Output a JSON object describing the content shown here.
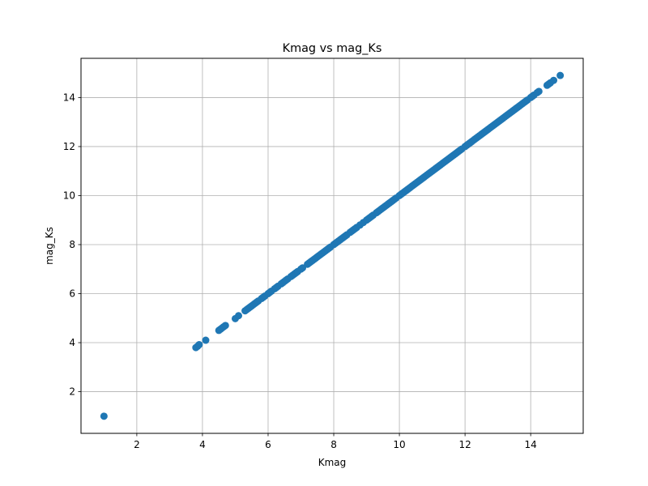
{
  "chart_data": {
    "type": "scatter",
    "title": "Kmag vs mag_Ks",
    "xlabel": "Kmag",
    "ylabel": "mag_Ks",
    "xlim": [
      0.3,
      15.6
    ],
    "ylim": [
      0.3,
      15.6
    ],
    "x_ticks": [
      2,
      4,
      6,
      8,
      10,
      12,
      14
    ],
    "y_ticks": [
      2,
      4,
      6,
      8,
      10,
      12,
      14
    ],
    "x_tick_labels": [
      "2",
      "4",
      "6",
      "8",
      "10",
      "12",
      "14"
    ],
    "y_tick_labels": [
      "2",
      "4",
      "6",
      "8",
      "10",
      "12",
      "14"
    ],
    "grid": true,
    "legend": "none",
    "marker_color": "#1f77b4",
    "grid_color": "#b0b0b0",
    "points": [
      [
        1.0,
        1.0
      ],
      [
        3.8,
        3.8
      ],
      [
        3.85,
        3.85
      ],
      [
        3.9,
        3.92
      ],
      [
        4.1,
        4.1
      ],
      [
        4.5,
        4.5
      ],
      [
        4.55,
        4.55
      ],
      [
        4.6,
        4.6
      ],
      [
        4.65,
        4.65
      ],
      [
        4.7,
        4.7
      ],
      [
        5.0,
        4.98
      ],
      [
        5.1,
        5.1
      ],
      [
        5.3,
        5.3
      ],
      [
        5.35,
        5.35
      ],
      [
        5.4,
        5.4
      ],
      [
        5.45,
        5.45
      ],
      [
        5.5,
        5.5
      ],
      [
        5.55,
        5.55
      ],
      [
        5.6,
        5.6
      ],
      [
        5.65,
        5.65
      ],
      [
        5.7,
        5.7
      ],
      [
        5.8,
        5.8
      ],
      [
        5.85,
        5.85
      ],
      [
        5.9,
        5.9
      ],
      [
        6.0,
        6.0
      ],
      [
        6.05,
        6.05
      ],
      [
        6.1,
        6.1
      ],
      [
        6.2,
        6.2
      ],
      [
        6.25,
        6.25
      ],
      [
        6.3,
        6.3
      ],
      [
        6.4,
        6.4
      ],
      [
        6.45,
        6.45
      ],
      [
        6.5,
        6.5
      ],
      [
        6.55,
        6.55
      ],
      [
        6.6,
        6.6
      ],
      [
        6.7,
        6.7
      ],
      [
        6.75,
        6.75
      ],
      [
        6.8,
        6.8
      ],
      [
        6.85,
        6.85
      ],
      [
        6.9,
        6.9
      ],
      [
        7.0,
        7.0
      ],
      [
        7.05,
        7.05
      ],
      [
        7.2,
        7.2
      ],
      [
        7.25,
        7.25
      ],
      [
        7.3,
        7.3
      ],
      [
        7.35,
        7.35
      ],
      [
        7.4,
        7.4
      ],
      [
        7.45,
        7.45
      ],
      [
        7.5,
        7.5
      ],
      [
        7.55,
        7.55
      ],
      [
        7.6,
        7.6
      ],
      [
        7.65,
        7.65
      ],
      [
        7.7,
        7.7
      ],
      [
        7.75,
        7.75
      ],
      [
        7.8,
        7.8
      ],
      [
        7.85,
        7.85
      ],
      [
        7.9,
        7.9
      ],
      [
        8.0,
        8.0
      ],
      [
        8.05,
        8.05
      ],
      [
        8.1,
        8.1
      ],
      [
        8.15,
        8.15
      ],
      [
        8.2,
        8.2
      ],
      [
        8.25,
        8.25
      ],
      [
        8.3,
        8.3
      ],
      [
        8.35,
        8.35
      ],
      [
        8.4,
        8.4
      ],
      [
        8.5,
        8.5
      ],
      [
        8.55,
        8.55
      ],
      [
        8.6,
        8.6
      ],
      [
        8.65,
        8.65
      ],
      [
        8.7,
        8.7
      ],
      [
        8.8,
        8.8
      ],
      [
        8.9,
        8.9
      ],
      [
        9.0,
        9.0
      ],
      [
        9.05,
        9.05
      ],
      [
        9.1,
        9.1
      ],
      [
        9.15,
        9.15
      ],
      [
        9.2,
        9.2
      ],
      [
        9.3,
        9.3
      ],
      [
        9.35,
        9.35
      ],
      [
        9.4,
        9.4
      ],
      [
        9.45,
        9.45
      ],
      [
        9.5,
        9.5
      ],
      [
        9.55,
        9.55
      ],
      [
        9.6,
        9.6
      ],
      [
        9.65,
        9.65
      ],
      [
        9.7,
        9.7
      ],
      [
        9.75,
        9.75
      ],
      [
        9.8,
        9.8
      ],
      [
        9.85,
        9.85
      ],
      [
        9.9,
        9.9
      ],
      [
        10.0,
        10.0
      ],
      [
        10.05,
        10.05
      ],
      [
        10.1,
        10.1
      ],
      [
        10.15,
        10.15
      ],
      [
        10.2,
        10.2
      ],
      [
        10.25,
        10.25
      ],
      [
        10.3,
        10.3
      ],
      [
        10.35,
        10.35
      ],
      [
        10.4,
        10.4
      ],
      [
        10.45,
        10.45
      ],
      [
        10.5,
        10.5
      ],
      [
        10.55,
        10.55
      ],
      [
        10.6,
        10.6
      ],
      [
        10.65,
        10.65
      ],
      [
        10.7,
        10.7
      ],
      [
        10.75,
        10.75
      ],
      [
        10.8,
        10.8
      ],
      [
        10.85,
        10.85
      ],
      [
        10.9,
        10.9
      ],
      [
        10.95,
        10.95
      ],
      [
        11.0,
        11.0
      ],
      [
        11.05,
        11.05
      ],
      [
        11.1,
        11.1
      ],
      [
        11.15,
        11.15
      ],
      [
        11.2,
        11.2
      ],
      [
        11.25,
        11.25
      ],
      [
        11.3,
        11.3
      ],
      [
        11.35,
        11.35
      ],
      [
        11.4,
        11.4
      ],
      [
        11.45,
        11.45
      ],
      [
        11.5,
        11.5
      ],
      [
        11.55,
        11.55
      ],
      [
        11.6,
        11.6
      ],
      [
        11.65,
        11.65
      ],
      [
        11.7,
        11.7
      ],
      [
        11.75,
        11.75
      ],
      [
        11.8,
        11.8
      ],
      [
        11.85,
        11.85
      ],
      [
        11.9,
        11.9
      ],
      [
        12.0,
        12.0
      ],
      [
        12.05,
        12.05
      ],
      [
        12.1,
        12.1
      ],
      [
        12.15,
        12.15
      ],
      [
        12.2,
        12.2
      ],
      [
        12.25,
        12.25
      ],
      [
        12.3,
        12.3
      ],
      [
        12.35,
        12.35
      ],
      [
        12.4,
        12.4
      ],
      [
        12.45,
        12.45
      ],
      [
        12.5,
        12.5
      ],
      [
        12.55,
        12.55
      ],
      [
        12.6,
        12.6
      ],
      [
        12.65,
        12.65
      ],
      [
        12.7,
        12.7
      ],
      [
        12.75,
        12.75
      ],
      [
        12.8,
        12.8
      ],
      [
        12.85,
        12.85
      ],
      [
        12.9,
        12.9
      ],
      [
        12.95,
        12.95
      ],
      [
        13.0,
        13.0
      ],
      [
        13.05,
        13.05
      ],
      [
        13.1,
        13.1
      ],
      [
        13.15,
        13.15
      ],
      [
        13.2,
        13.2
      ],
      [
        13.25,
        13.25
      ],
      [
        13.3,
        13.3
      ],
      [
        13.35,
        13.35
      ],
      [
        13.4,
        13.4
      ],
      [
        13.45,
        13.45
      ],
      [
        13.5,
        13.5
      ],
      [
        13.55,
        13.55
      ],
      [
        13.6,
        13.6
      ],
      [
        13.65,
        13.65
      ],
      [
        13.7,
        13.7
      ],
      [
        13.75,
        13.75
      ],
      [
        13.8,
        13.8
      ],
      [
        13.85,
        13.85
      ],
      [
        13.9,
        13.9
      ],
      [
        14.0,
        14.0
      ],
      [
        14.05,
        14.05
      ],
      [
        14.1,
        14.1
      ],
      [
        14.2,
        14.2
      ],
      [
        14.25,
        14.25
      ],
      [
        14.5,
        14.5
      ],
      [
        14.55,
        14.55
      ],
      [
        14.6,
        14.6
      ],
      [
        14.7,
        14.7
      ],
      [
        14.9,
        14.9
      ]
    ]
  }
}
